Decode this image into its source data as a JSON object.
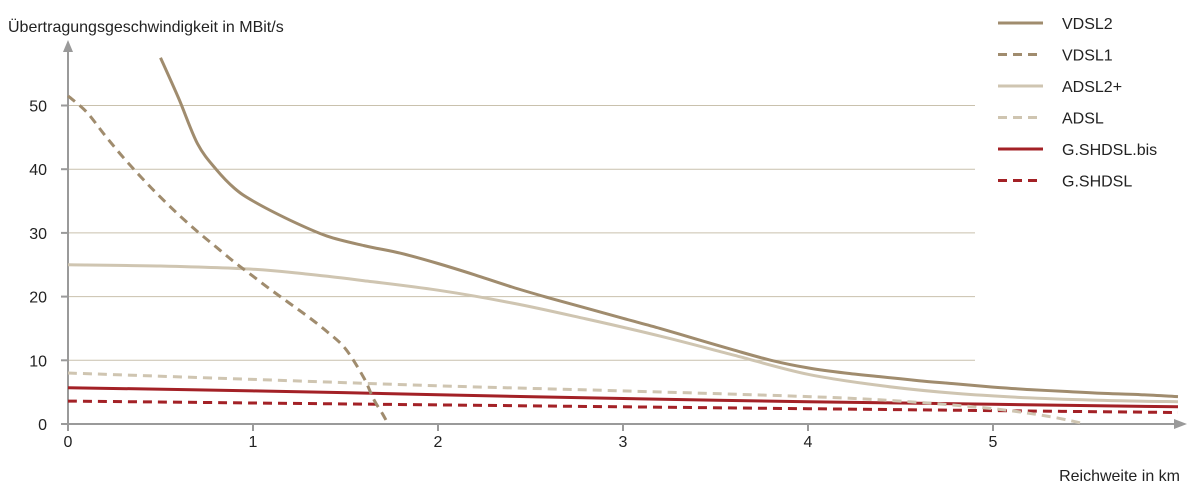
{
  "chart_data": {
    "type": "line",
    "title": "",
    "ylabel": "Übertragungsgeschwindigkeit in MBit/s",
    "xlabel": "Reichweite in km",
    "xlim": [
      0,
      6
    ],
    "ylim": [
      0,
      57
    ],
    "x_ticks": [
      "0",
      "1",
      "2",
      "3",
      "4",
      "5"
    ],
    "y_ticks": [
      "0",
      "10",
      "20",
      "30",
      "40",
      "50"
    ],
    "grid": "horizontal",
    "legend_position": "top-right",
    "series": [
      {
        "name": "VDSL2",
        "color": "#a08c6e",
        "dash": "solid",
        "x": [
          0.5,
          0.6,
          0.7,
          0.8,
          0.9,
          1.0,
          1.2,
          1.4,
          1.6,
          1.8,
          2.0,
          2.2,
          2.4,
          2.6,
          2.8,
          3.0,
          3.2,
          3.4,
          3.6,
          3.8,
          4.0,
          4.2,
          4.4,
          4.6,
          4.8,
          5.0,
          5.2,
          5.4,
          5.6,
          5.8,
          6.0
        ],
        "y": [
          57.5,
          51,
          44,
          40,
          37,
          35,
          32,
          29.5,
          28,
          26.8,
          25.2,
          23.4,
          21.5,
          19.8,
          18.2,
          16.6,
          15,
          13.3,
          11.6,
          10,
          8.8,
          8,
          7.4,
          6.8,
          6.3,
          5.8,
          5.4,
          5.1,
          4.8,
          4.6,
          4.3
        ]
      },
      {
        "name": "VDSL1",
        "color": "#a08c6e",
        "dash": "dashed",
        "x": [
          0.0,
          0.1,
          0.2,
          0.3,
          0.4,
          0.5,
          0.6,
          0.7,
          0.8,
          0.9,
          1.0,
          1.1,
          1.2,
          1.3,
          1.4,
          1.5,
          1.6,
          1.65,
          1.7,
          1.73
        ],
        "y": [
          51.5,
          49,
          45.3,
          41.8,
          38.6,
          35.6,
          32.8,
          30.2,
          27.8,
          25.4,
          23.2,
          21,
          18.9,
          16.8,
          14.5,
          11.8,
          7.2,
          4,
          1.6,
          0
        ]
      },
      {
        "name": "ADSL2+",
        "color": "#cfc5b1",
        "dash": "solid",
        "x": [
          0.0,
          0.5,
          1.0,
          1.3,
          1.6,
          2.0,
          2.4,
          2.8,
          3.2,
          3.6,
          4.0,
          4.4,
          4.8,
          5.2,
          5.6,
          6.0
        ],
        "y": [
          25,
          24.8,
          24.3,
          23.5,
          22.5,
          21,
          19,
          16.5,
          13.8,
          10.8,
          7.8,
          6,
          4.8,
          4.1,
          3.7,
          3.5
        ]
      },
      {
        "name": "ADSL",
        "color": "#cfc5b1",
        "dash": "dashed",
        "x": [
          0.0,
          1.0,
          2.0,
          3.0,
          4.0,
          4.5,
          5.0,
          5.3,
          5.5
        ],
        "y": [
          8,
          7,
          6,
          5.2,
          4.3,
          3.6,
          2.4,
          1.2,
          0
        ]
      },
      {
        "name": "G.SHDSL.bis",
        "color": "#a32126",
        "dash": "solid",
        "x": [
          0.0,
          1.0,
          2.0,
          3.0,
          4.0,
          5.0,
          6.0
        ],
        "y": [
          5.7,
          5.2,
          4.6,
          4.0,
          3.5,
          3.1,
          2.7
        ]
      },
      {
        "name": "G.SHDSL",
        "color": "#a32126",
        "dash": "dashed",
        "x": [
          0.0,
          1.0,
          2.0,
          3.0,
          4.0,
          5.0,
          6.0
        ],
        "y": [
          3.6,
          3.3,
          3.0,
          2.7,
          2.4,
          2.1,
          1.8
        ]
      }
    ]
  }
}
